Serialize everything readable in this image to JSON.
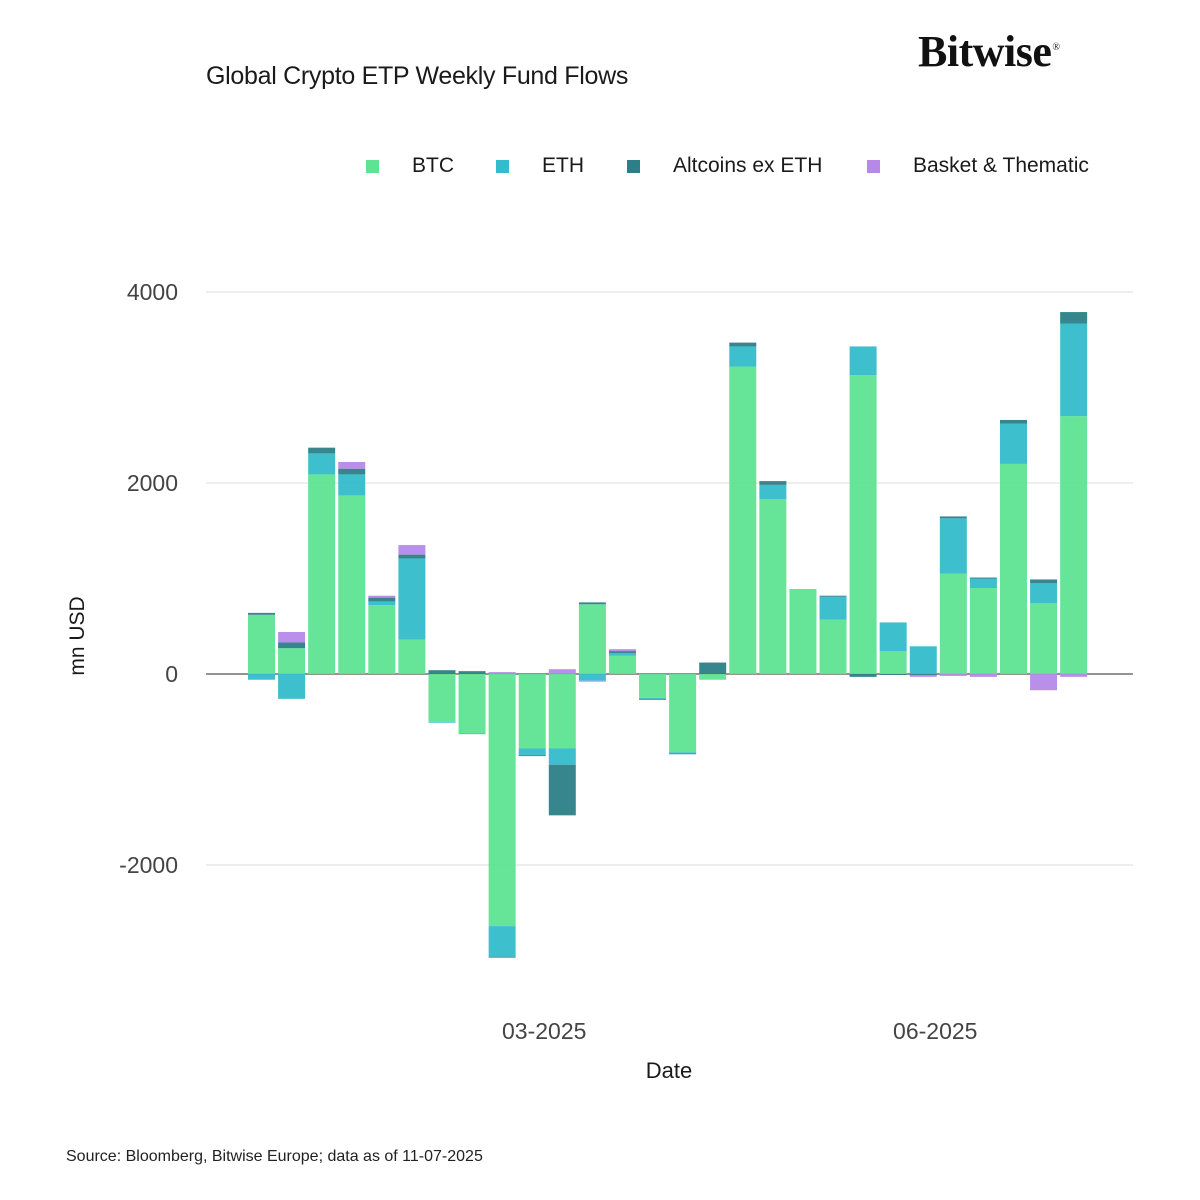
{
  "brand": {
    "name": "Bitwise",
    "mark": "®"
  },
  "chart_data": {
    "type": "bar",
    "stacked": true,
    "title": "Global Crypto ETP Weekly Fund Flows",
    "xlabel": "Date",
    "ylabel": "mn USD",
    "ylim": [
      -3400,
      4300
    ],
    "yticks": [
      4000,
      2000,
      0,
      -2000
    ],
    "ytick_labels": [
      "4000",
      "2000",
      "0",
      "-2000"
    ],
    "xtick_labels": [
      {
        "label": "03-2025",
        "week_index": 9
      },
      {
        "label": "06-2025",
        "week_index": 22
      }
    ],
    "legend_position": "top-right",
    "series": [
      {
        "name": "BTC",
        "color": "#5ee391",
        "values": [
          620,
          270,
          2090,
          1870,
          720,
          360,
          -500,
          -620,
          -2640,
          -780,
          -780,
          730,
          190,
          -250,
          -820,
          -60,
          3220,
          1830,
          890,
          570,
          3130,
          240,
          0,
          1050,
          900,
          2200,
          740,
          2700
        ]
      },
      {
        "name": "ETH",
        "color": "#33bccb",
        "values": [
          -60,
          -260,
          220,
          220,
          40,
          850,
          -10,
          -10,
          -320,
          -70,
          -170,
          -70,
          30,
          -10,
          -10,
          0,
          210,
          150,
          0,
          240,
          300,
          300,
          290,
          580,
          100,
          420,
          210,
          970
        ]
      },
      {
        "name": "Altcoins ex ETH",
        "color": "#2d7f87",
        "values": [
          20,
          60,
          60,
          60,
          40,
          40,
          40,
          30,
          -10,
          -10,
          -530,
          20,
          20,
          -10,
          -10,
          120,
          40,
          40,
          0,
          10,
          -30,
          -10,
          -10,
          20,
          10,
          40,
          40,
          120
        ]
      },
      {
        "name": "Basket & Thematic",
        "color": "#b689e8",
        "values": [
          0,
          110,
          0,
          70,
          20,
          100,
          0,
          0,
          20,
          0,
          50,
          -10,
          20,
          0,
          0,
          0,
          0,
          0,
          0,
          0,
          0,
          0,
          -20,
          -20,
          -30,
          0,
          -170,
          -30
        ]
      }
    ]
  },
  "source_note": "Source: Bloomberg, Bitwise Europe; data as of  11-07-2025"
}
